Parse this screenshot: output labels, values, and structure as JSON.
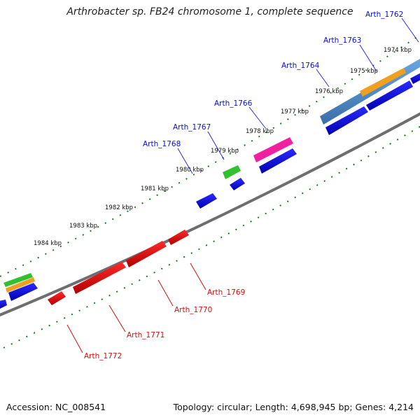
{
  "title": "Arthrobacter sp. FB24 chromosome 1, complete sequence",
  "footer": {
    "accession": "Accession: NC_008541",
    "summary": "Topology: circular; Length: 4,698,945 bp; Genes: 4,214"
  },
  "kbp_labels": [
    "1974 kbp",
    "1975 kbp",
    "1976 kbp",
    "1977 kbp",
    "1978 kbp",
    "1979 kbp",
    "1980 kbp",
    "1981 kbp",
    "1982 kbp",
    "1983 kbp",
    "1984 kbp"
  ],
  "gene_labels_top": [
    "Arth_1762",
    "Arth_1763",
    "Arth_1764",
    "Arth_1766",
    "Arth_1767",
    "Arth_1768"
  ],
  "gene_labels_bottom": [
    "Arth_1769",
    "Arth_1770",
    "Arth_1771",
    "Arth_1772"
  ],
  "colors": {
    "forward_cds": "#1010e0",
    "reverse_cds": "#e01010",
    "backbone": "#7a7a7a",
    "ticks": "#1e7a1e",
    "gene_top_label": "#0a10c8",
    "gene_bottom_label": "#d01010",
    "feature_blue": "#4a8ad0",
    "feature_orange": "#f0a020",
    "feature_green": "#30c030",
    "feature_pink": "#f020a0"
  }
}
